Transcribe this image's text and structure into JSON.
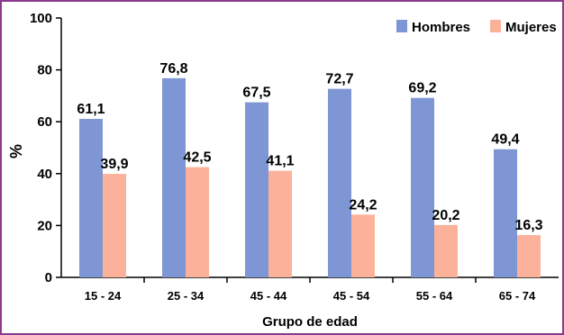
{
  "chart_data": {
    "type": "bar",
    "title": "",
    "xlabel": "Grupo de edad",
    "ylabel": "%",
    "ylim": [
      0,
      100
    ],
    "yticks": [
      0,
      20,
      40,
      60,
      80,
      100
    ],
    "categories": [
      "15 - 24",
      "25 - 34",
      "45 - 44",
      "45 - 54",
      "55 - 64",
      "65 - 74"
    ],
    "series": [
      {
        "name": "Hombres",
        "color": "#7f96d4",
        "values": [
          61.1,
          76.8,
          67.5,
          72.7,
          69.2,
          49.4
        ],
        "labels": [
          "61,1",
          "76,8",
          "67,5",
          "72,7",
          "69,2",
          "49,4"
        ]
      },
      {
        "name": "Mujeres",
        "color": "#fcb29a",
        "values": [
          39.9,
          42.5,
          41.1,
          24.2,
          20.2,
          16.3
        ],
        "labels": [
          "39,9",
          "42,5",
          "41,1",
          "24,2",
          "20,2",
          "16,3"
        ]
      }
    ],
    "grid": false,
    "legend_position": "top-right"
  }
}
